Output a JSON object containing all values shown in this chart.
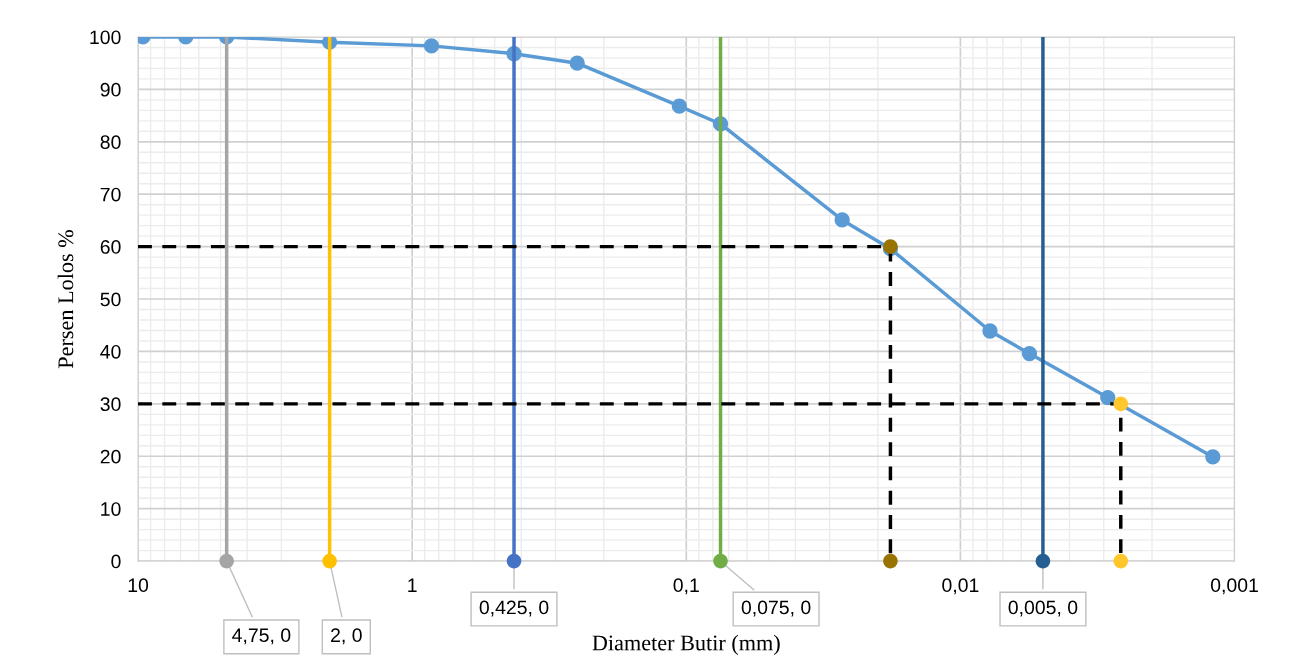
{
  "chart_data": {
    "type": "line",
    "xlabel": "Diameter Butir (mm)",
    "ylabel": "Persen Lolos %",
    "log": "x",
    "grid": true,
    "xlim": [
      10,
      0.001
    ],
    "xticks": [
      10,
      1,
      {
        "value": 0.1,
        "label": "0,1"
      },
      {
        "value": 0.01,
        "label": "0,01"
      },
      {
        "value": 0.001,
        "label": "0,001"
      }
    ],
    "ylim": [
      0,
      100
    ],
    "yticks": [
      0,
      10,
      20,
      30,
      40,
      50,
      60,
      70,
      80,
      90,
      100
    ],
    "series": [
      {
        "color": "#5b9bd5",
        "marker": "circle",
        "x": [
          9.6,
          6.7,
          4.75,
          2,
          0.85,
          0.425,
          0.25,
          0.106,
          0.075,
          0.027,
          0.018,
          0.0078,
          0.0056,
          0.0029,
          0.0012
        ],
        "values": [
          100,
          100,
          100,
          99,
          98.3,
          96.8,
          95,
          86.8,
          83.4,
          65.1,
          59.6,
          43.9,
          39.6,
          31.2,
          19.9
        ]
      },
      {
        "color": "#a5a5a5",
        "marker": "none",
        "x": [
          4.75,
          4.75
        ],
        "values": [
          0,
          100
        ]
      },
      {
        "color": "#ffc000",
        "marker": "none",
        "x": [
          2,
          2
        ],
        "values": [
          0,
          100
        ]
      },
      {
        "color": "#4472c4",
        "marker": "none",
        "x": [
          0.425,
          0.425
        ],
        "values": [
          0,
          100
        ]
      },
      {
        "color": "#70ad47",
        "marker": "none",
        "x": [
          0.075,
          0.075
        ],
        "values": [
          0,
          100
        ]
      },
      {
        "color": "#255e91",
        "marker": "none",
        "x": [
          0.005,
          0.005
        ],
        "values": [
          0,
          100
        ]
      },
      {
        "type": "scatter",
        "marker": "circle",
        "x": [
          4.75,
          2,
          0.425,
          0.075,
          0.005
        ],
        "values": [
          0,
          0,
          0,
          0,
          0
        ],
        "colors": [
          "#a5a5a5",
          "#ffc000",
          "#4472c4",
          "#70ad47",
          "#255e91"
        ],
        "value_labels": [
          "4,75, 0",
          "2, 0",
          "0,425, 0",
          "0,075, 0",
          "0,005, 0"
        ]
      },
      {
        "color": "#000000",
        "marker": "none",
        "line_style": "dashed",
        "x": [
          10,
          0.018,
          0.018
        ],
        "values": [
          60,
          60,
          0
        ]
      },
      {
        "color": "#000000",
        "marker": "none",
        "line_style": "dashed",
        "x": [
          10,
          0.0026,
          0.0026
        ],
        "values": [
          30,
          30,
          0
        ]
      },
      {
        "type": "scatter",
        "marker": "circle",
        "color": "#997300",
        "x": [
          0.018,
          0.018
        ],
        "values": [
          60,
          0
        ]
      },
      {
        "type": "scatter",
        "marker": "circle",
        "color": "#ffc72c",
        "x": [
          0.0026,
          0.0026
        ],
        "values": [
          30,
          0
        ]
      }
    ]
  }
}
